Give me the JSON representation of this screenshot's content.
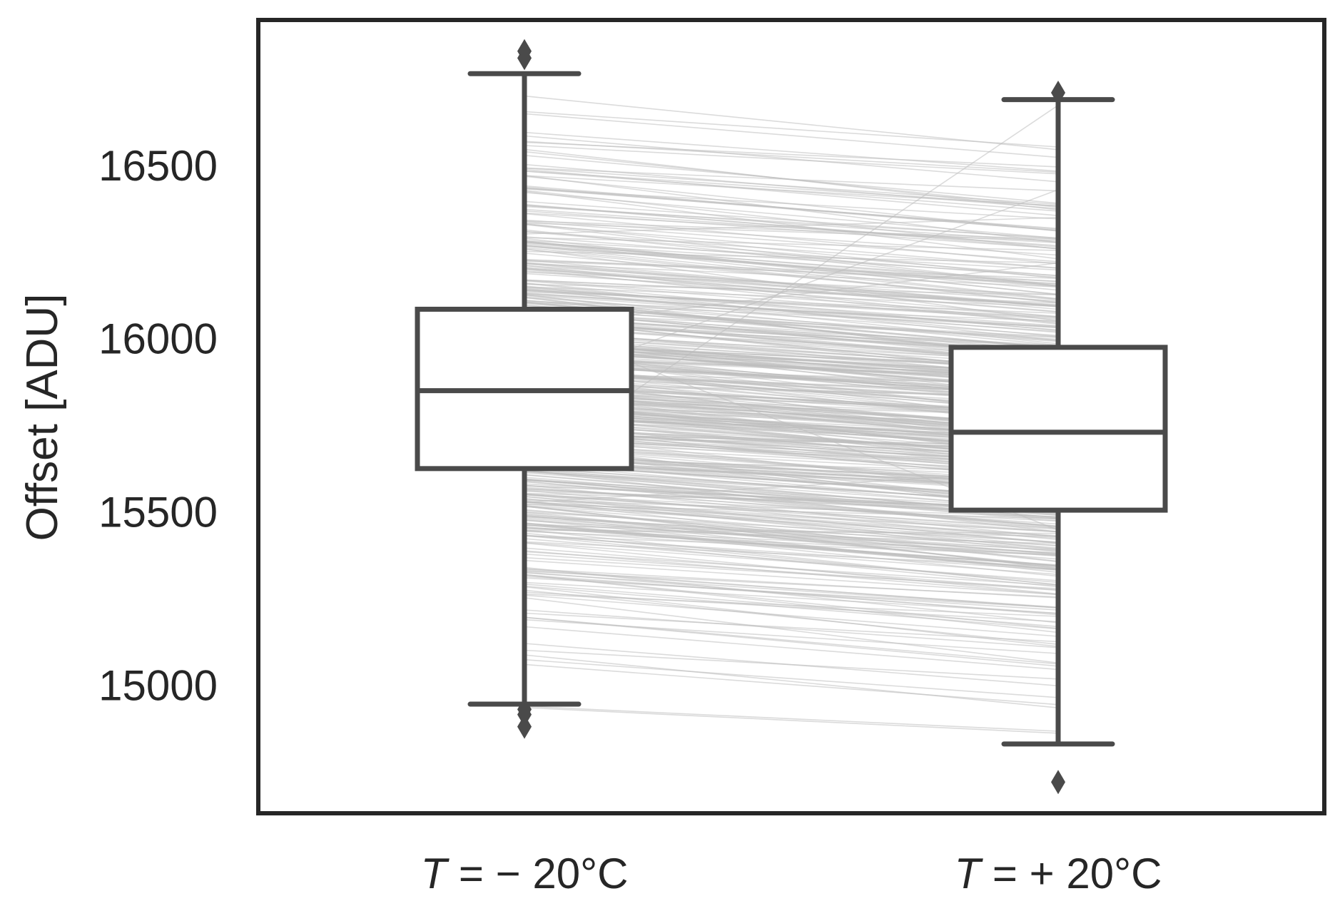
{
  "chart_data": {
    "type": "box",
    "title": "",
    "xlabel": "",
    "ylabel": "Offset [ADU]",
    "ylim": [
      14630,
      16920
    ],
    "yticks": [
      15000,
      15500,
      16000,
      16500
    ],
    "ytick_labels": [
      "15000",
      "15500",
      "16000",
      "16500"
    ],
    "grid": false,
    "categories": [
      {
        "italic": "T",
        "rest": " = − 20°C"
      },
      {
        "italic": "T",
        "rest": " = + 20°C"
      }
    ],
    "boxes": [
      {
        "whisker_low": 14945,
        "q1": 15625,
        "median": 15850,
        "q3": 16085,
        "whisker_high": 16765,
        "outliers": [
          16830,
          16810,
          14930,
          14915,
          14880
        ]
      },
      {
        "whisker_low": 14830,
        "q1": 15505,
        "median": 15730,
        "q3": 15975,
        "whisker_high": 16690,
        "outliers": [
          16710,
          14720
        ]
      }
    ],
    "paired_lines": {
      "description_only": false,
      "count": 500
    },
    "colors": {
      "box_edge": "#4a4a4a",
      "paired_line": "#bdbdbd",
      "frame": "#262626"
    }
  }
}
